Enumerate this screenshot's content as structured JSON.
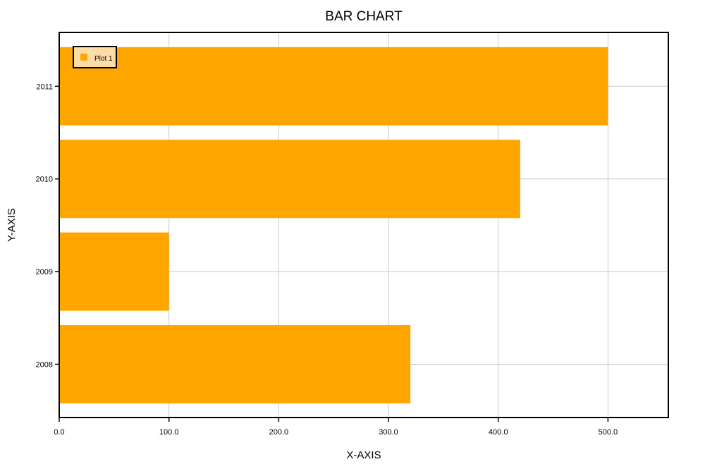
{
  "chart_data": {
    "type": "bar",
    "orientation": "horizontal",
    "title": "BAR CHART",
    "xlabel": "X-AXIS",
    "ylabel": "Y-AXIS",
    "categories": [
      "2008",
      "2009",
      "2010",
      "2011"
    ],
    "series": [
      {
        "name": "Plot 1",
        "values": [
          320,
          100,
          420,
          500
        ],
        "color": "#FFA500"
      }
    ],
    "xlim": [
      0,
      555
    ],
    "x_ticks": [
      0,
      100,
      200,
      300,
      400,
      500
    ],
    "x_tick_labels": [
      "0.0",
      "100.0",
      "200.0",
      "300.0",
      "400.0",
      "500.0"
    ],
    "grid": true,
    "legend": "top-left"
  }
}
